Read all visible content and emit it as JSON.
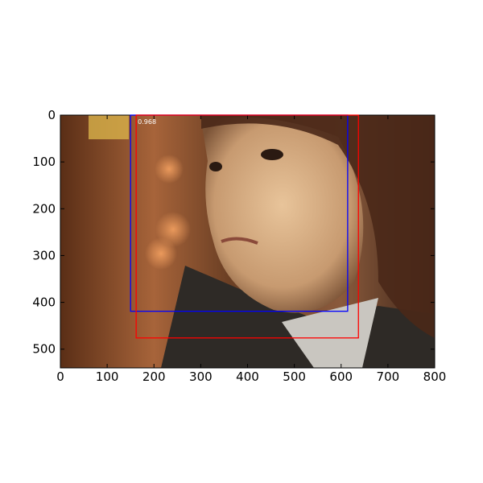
{
  "chart_data": {
    "type": "detection",
    "xlim": [
      0,
      800
    ],
    "ylim": [
      540,
      0
    ],
    "xticks": [
      0,
      100,
      200,
      300,
      400,
      500,
      600,
      700,
      800
    ],
    "yticks": [
      0,
      100,
      200,
      300,
      400,
      500
    ],
    "boxes": [
      {
        "color": "#0000ff",
        "x0": 150,
        "y0": 0,
        "x1": 614,
        "y1": 419
      },
      {
        "color": "#ff0000",
        "x0": 162,
        "y0": 0,
        "x1": 637,
        "y1": 476,
        "score": 0.968
      }
    ]
  }
}
